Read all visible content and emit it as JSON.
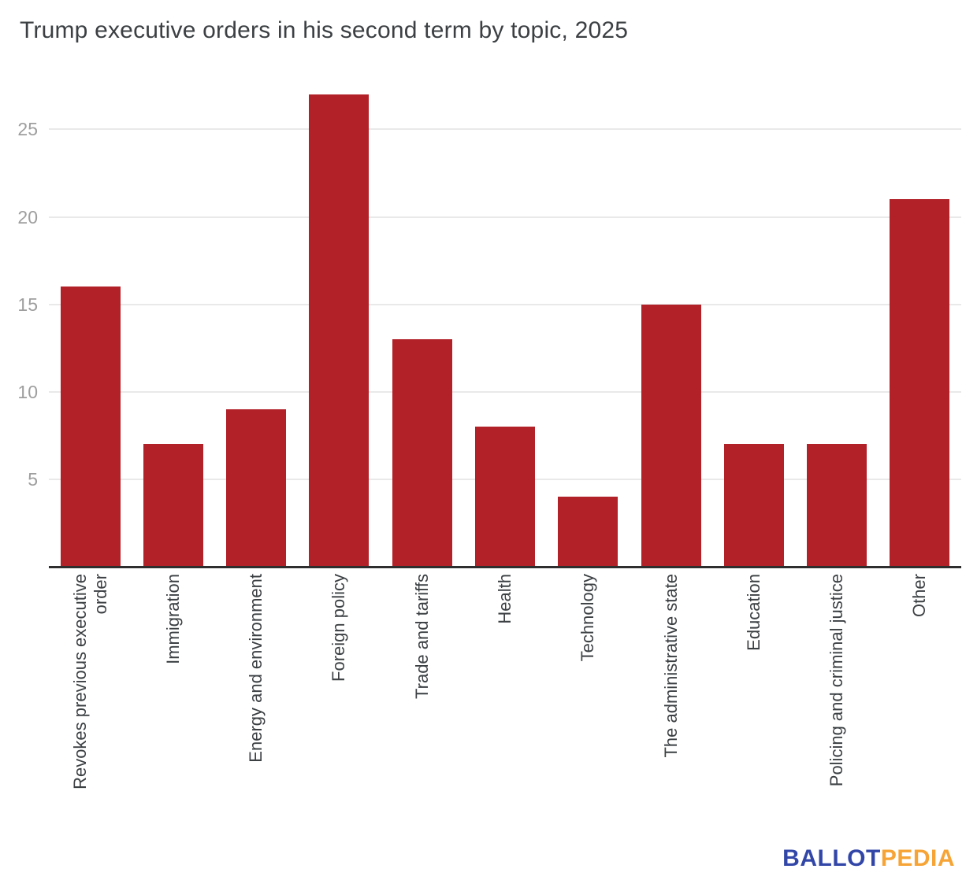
{
  "chart_data": {
    "type": "bar",
    "title": "Trump executive orders in his second term by topic, 2025",
    "categories": [
      "Revokes previous executive order",
      "Immigration",
      "Energy and environment",
      "Foreign policy",
      "Trade and tariffs",
      "Health",
      "Technology",
      "The administrative state",
      "Education",
      "Policing and criminal justice",
      "Other"
    ],
    "values": [
      16,
      7,
      9,
      27,
      13,
      8,
      4,
      15,
      7,
      7,
      21
    ],
    "xlabel": "",
    "ylabel": "",
    "ylim": [
      0,
      27
    ],
    "yticks": [
      5,
      10,
      15,
      20,
      25
    ],
    "grid": true,
    "legend": "none",
    "bar_color": "#b22028",
    "gridline_color": "#e9e9e9",
    "axis_line_color": "#2e2e2e",
    "tick_label_color": "#9e9e9e",
    "label_color": "#3c4043"
  },
  "branding": {
    "logo_text_primary": "BALLOT",
    "logo_text_secondary": "PEDIA",
    "primary_color": "#3246a8",
    "secondary_color": "#f6a435"
  }
}
